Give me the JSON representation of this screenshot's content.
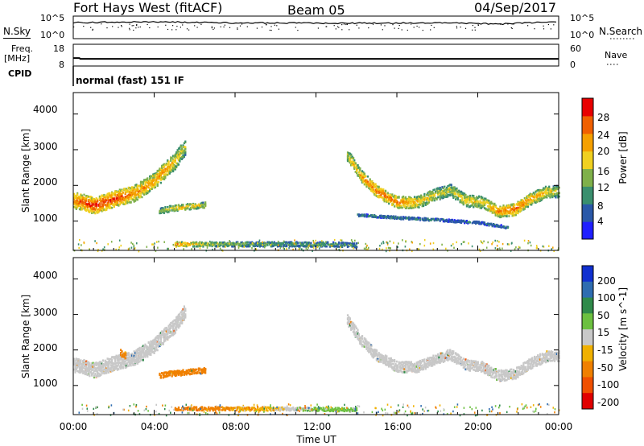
{
  "header": {
    "station": "Fort Hays West (fitACF)",
    "beam": "Beam 05",
    "date": "04/Sep/2017"
  },
  "noise_panel": {
    "left_label": "N.Sky",
    "right_label": "N.Search",
    "left_ticks": [
      "10^5",
      "10^0"
    ],
    "right_ticks": [
      "10^5",
      "10^0"
    ]
  },
  "freq_panel": {
    "left_label_line1": "Freq.",
    "left_label_line2": "[MHz]",
    "left_label_line3": "CPID",
    "right_label": "Nave",
    "left_ticks": [
      "18",
      "8"
    ],
    "right_ticks": [
      "60",
      "0"
    ]
  },
  "cpid_text": "normal (fast) 151 IF",
  "x_axis": {
    "label": "Time UT",
    "ticks": [
      "00:00",
      "04:00",
      "08:00",
      "12:00",
      "16:00",
      "20:00",
      "00:00"
    ]
  },
  "power_panel": {
    "ylabel": "Slant Range [km]",
    "yticks": [
      "1000",
      "2000",
      "3000",
      "4000"
    ],
    "colorbar_label": "Power [dB]",
    "colorbar_ticks": [
      "4",
      "8",
      "12",
      "16",
      "20",
      "24",
      "28"
    ],
    "colorbar_colors": [
      "#1f1fff",
      "#2a58a8",
      "#3a8f6e",
      "#7fb04a",
      "#f0d020",
      "#f5a000",
      "#f06000",
      "#e80000"
    ]
  },
  "velocity_panel": {
    "ylabel": "Slant Range [km]",
    "yticks": [
      "1000",
      "2000",
      "3000",
      "4000"
    ],
    "colorbar_label": "Velocity [m s^-1]",
    "colorbar_ticks": [
      "200",
      "100",
      "50",
      "15",
      "-15",
      "-50",
      "-100",
      "-200"
    ],
    "colorbar_colors": [
      "#1030d0",
      "#2e6cb0",
      "#2f8a4a",
      "#6cc040",
      "#c8c8c8",
      "#f0b000",
      "#f08000",
      "#f05000",
      "#e00000"
    ]
  },
  "chart_data": [
    {
      "type": "line",
      "title": "N.Sky / N.Search",
      "x_range_hours": [
        0,
        24
      ],
      "y_scale": "log",
      "ylim": [
        1,
        100000
      ],
      "series": [
        {
          "name": "N.Sky",
          "x": [
            0,
            2,
            4,
            6,
            8,
            10,
            12,
            14,
            16,
            18,
            20,
            21,
            22,
            23,
            24
          ],
          "y": [
            2500,
            3000,
            4000,
            2500,
            2000,
            2000,
            1800,
            1800,
            2000,
            2200,
            1500,
            900,
            1800,
            2500,
            3000
          ]
        }
      ]
    },
    {
      "type": "line",
      "title": "Freq. / Nave",
      "x_range_hours": [
        0,
        24
      ],
      "ylim": [
        8,
        18
      ],
      "series": [
        {
          "name": "Freq.",
          "x": [
            0,
            0.3,
            0.35,
            24
          ],
          "y": [
            11.3,
            11.3,
            10.8,
            10.8
          ]
        }
      ]
    },
    {
      "type": "heatmap",
      "title": "Power [dB]",
      "x_range_hours": [
        0,
        24
      ],
      "ylim_km": [
        180,
        4600
      ],
      "clim": [
        0,
        30
      ],
      "bands": [
        {
          "t": [
            0.0,
            0.5,
            1.0,
            2.0,
            3.0,
            4.0,
            4.5,
            5.0,
            5.5
          ],
          "r": [
            1600,
            1550,
            1450,
            1650,
            1800,
            2150,
            2450,
            2700,
            3100
          ],
          "w": 450,
          "c": [
            22,
            25,
            27,
            26,
            22,
            20,
            21,
            18,
            14
          ]
        },
        {
          "t": [
            4.2,
            4.8,
            5.5,
            6.5
          ],
          "r": [
            1300,
            1380,
            1420,
            1480
          ],
          "w": 160,
          "c": [
            13,
            17,
            19,
            15
          ]
        },
        {
          "t": [
            13.5,
            14.2,
            15.0,
            16.0,
            17.0,
            17.8,
            18.6,
            19.4,
            20.2,
            21.0,
            21.8,
            22.6,
            23.4,
            24.0
          ],
          "r": [
            2900,
            2300,
            1850,
            1550,
            1550,
            1750,
            1900,
            1600,
            1550,
            1300,
            1350,
            1650,
            1850,
            1850
          ],
          "w": 330,
          "c": [
            16,
            21,
            24,
            22,
            19,
            16,
            15,
            18,
            17,
            22,
            24,
            21,
            18,
            15
          ]
        },
        {
          "t": [
            14.0,
            16.0,
            18.0,
            20.0,
            21.5
          ],
          "r": [
            1200,
            1120,
            1060,
            980,
            850
          ],
          "w": 70,
          "c": [
            9,
            8,
            8,
            7,
            7
          ]
        },
        {
          "t": [
            5.0,
            7.0,
            9.0,
            11.0,
            13.0,
            14.0
          ],
          "r": [
            380,
            380,
            380,
            380,
            370,
            350
          ],
          "w": 130,
          "c": [
            22,
            14,
            11,
            11,
            10,
            9
          ]
        }
      ]
    },
    {
      "type": "heatmap",
      "title": "Velocity [m s^-1]",
      "x_range_hours": [
        0,
        24
      ],
      "ylim_km": [
        180,
        4600
      ],
      "clim": [
        -250,
        250
      ],
      "bands": [
        {
          "t": [
            0.0,
            0.5,
            1.0,
            2.0,
            3.0,
            4.0,
            4.5,
            5.0,
            5.5
          ],
          "r": [
            1600,
            1550,
            1450,
            1650,
            1800,
            2150,
            2450,
            2700,
            3100
          ],
          "w": 450,
          "v": [
            -5,
            -5,
            -5,
            -5,
            -5,
            -5,
            -5,
            -5,
            -5
          ]
        },
        {
          "t": [
            4.2,
            4.8,
            5.5,
            6.5
          ],
          "r": [
            1300,
            1360,
            1400,
            1450
          ],
          "w": 170,
          "v": [
            -70,
            -75,
            -70,
            -60
          ]
        },
        {
          "t": [
            2.3,
            2.6
          ],
          "r": [
            1950,
            1850
          ],
          "w": 200,
          "v": [
            -70,
            -70
          ]
        },
        {
          "t": [
            13.5,
            14.2,
            15.0,
            16.0,
            17.0,
            17.8,
            18.6,
            19.4,
            20.2,
            21.0,
            21.8,
            22.6,
            23.4,
            24.0
          ],
          "r": [
            2900,
            2300,
            1850,
            1550,
            1550,
            1750,
            1900,
            1600,
            1550,
            1300,
            1350,
            1650,
            1850,
            1850
          ],
          "w": 330,
          "v": [
            -5,
            -5,
            -5,
            -5,
            -5,
            -5,
            -5,
            -5,
            -5,
            -5,
            -5,
            -5,
            -5,
            -5
          ]
        },
        {
          "t": [
            5.0,
            7.0,
            9.0,
            11.0,
            12.0,
            13.0,
            14.0
          ],
          "r": [
            380,
            370,
            370,
            360,
            360,
            350,
            340
          ],
          "w": 110,
          "v": [
            -60,
            -60,
            -45,
            10,
            25,
            25,
            20
          ]
        }
      ]
    }
  ]
}
